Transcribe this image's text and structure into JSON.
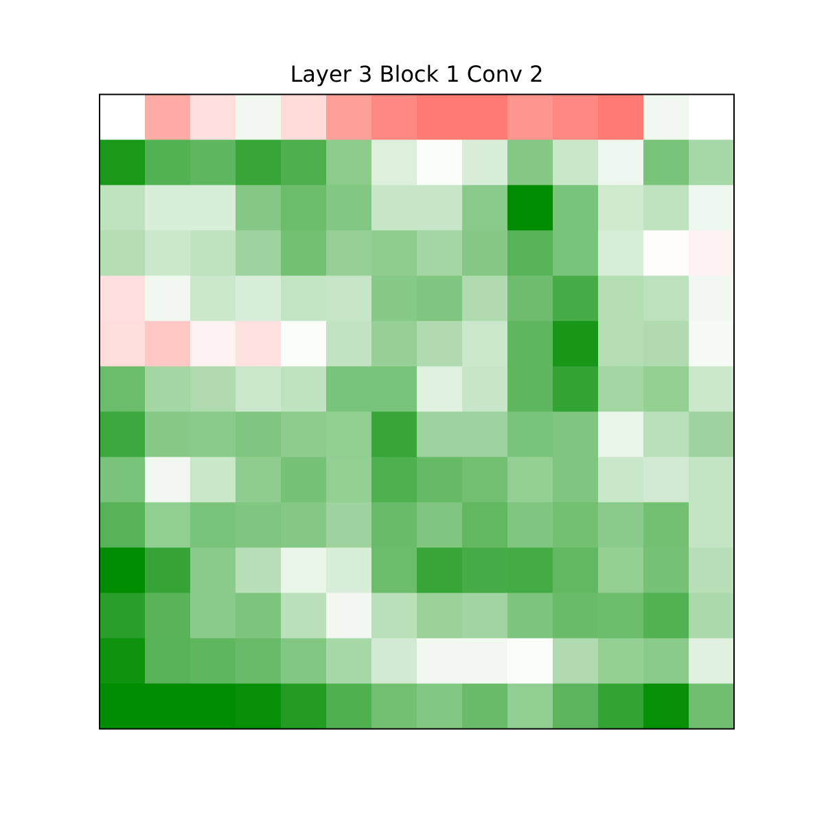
{
  "chart_data": {
    "type": "heatmap",
    "title": "Layer 3 Block 1 Conv 2",
    "xlabel": "",
    "ylabel": "",
    "rows": 14,
    "cols": 14,
    "axes_visible": false,
    "colors": {
      "negative": "#ff7b73",
      "zero": "#ffffff",
      "positive": "#008c00",
      "frame": "#000000"
    },
    "color_scale": [
      -0.55,
      1.0
    ],
    "values": [
      [
        0.0,
        -0.35,
        -0.13,
        0.06,
        -0.15,
        -0.4,
        -0.49,
        -0.55,
        -0.55,
        -0.44,
        -0.49,
        -0.55,
        0.06,
        0.0
      ],
      [
        0.9,
        0.68,
        0.63,
        0.78,
        0.7,
        0.45,
        0.14,
        0.02,
        0.15,
        0.48,
        0.21,
        0.07,
        0.52,
        0.35
      ],
      [
        0.25,
        0.15,
        0.15,
        0.48,
        0.58,
        0.49,
        0.22,
        0.22,
        0.46,
        1.0,
        0.52,
        0.19,
        0.25,
        0.07
      ],
      [
        0.3,
        0.2,
        0.25,
        0.38,
        0.55,
        0.41,
        0.44,
        0.36,
        0.48,
        0.66,
        0.52,
        0.16,
        -0.01,
        -0.05
      ],
      [
        -0.13,
        0.06,
        0.2,
        0.15,
        0.23,
        0.22,
        0.47,
        0.5,
        0.31,
        0.57,
        0.72,
        0.3,
        0.26,
        0.06
      ],
      [
        -0.14,
        -0.23,
        -0.05,
        -0.12,
        0.02,
        0.24,
        0.41,
        0.31,
        0.2,
        0.63,
        0.91,
        0.3,
        0.31,
        0.04
      ],
      [
        0.58,
        0.36,
        0.31,
        0.2,
        0.25,
        0.52,
        0.52,
        0.12,
        0.22,
        0.63,
        0.8,
        0.36,
        0.42,
        0.2
      ],
      [
        0.76,
        0.47,
        0.46,
        0.5,
        0.45,
        0.43,
        0.78,
        0.38,
        0.39,
        0.52,
        0.5,
        0.09,
        0.27,
        0.38
      ],
      [
        0.52,
        0.06,
        0.21,
        0.44,
        0.53,
        0.42,
        0.69,
        0.6,
        0.55,
        0.42,
        0.5,
        0.21,
        0.18,
        0.23
      ],
      [
        0.66,
        0.43,
        0.52,
        0.5,
        0.48,
        0.38,
        0.59,
        0.5,
        0.62,
        0.5,
        0.55,
        0.46,
        0.55,
        0.23
      ],
      [
        1.0,
        0.79,
        0.46,
        0.28,
        0.09,
        0.15,
        0.58,
        0.78,
        0.72,
        0.73,
        0.62,
        0.42,
        0.54,
        0.28
      ],
      [
        0.84,
        0.65,
        0.46,
        0.51,
        0.27,
        0.06,
        0.27,
        0.4,
        0.37,
        0.51,
        0.59,
        0.58,
        0.68,
        0.33
      ],
      [
        0.94,
        0.66,
        0.63,
        0.59,
        0.49,
        0.34,
        0.18,
        0.06,
        0.06,
        0.02,
        0.31,
        0.42,
        0.46,
        0.12
      ],
      [
        1.0,
        1.0,
        1.0,
        0.97,
        0.86,
        0.69,
        0.55,
        0.49,
        0.59,
        0.43,
        0.64,
        0.8,
        0.97,
        0.56
      ]
    ]
  }
}
